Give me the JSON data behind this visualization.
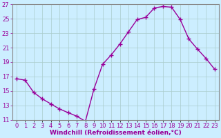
{
  "x": [
    0,
    1,
    2,
    3,
    4,
    5,
    6,
    7,
    8,
    9,
    10,
    11,
    12,
    13,
    14,
    15,
    16,
    17,
    18,
    19,
    20,
    21,
    22,
    23
  ],
  "y": [
    16.7,
    16.5,
    14.8,
    13.9,
    13.2,
    12.5,
    12.0,
    11.5,
    10.8,
    15.3,
    18.7,
    20.0,
    21.5,
    23.2,
    24.9,
    25.2,
    26.5,
    26.7,
    26.6,
    24.9,
    22.2,
    20.8,
    19.5,
    18.0
  ],
  "line_color": "#990099",
  "marker": "+",
  "marker_size": 4,
  "linewidth": 1.0,
  "bg_color": "#cceeff",
  "grid_color": "#aacccc",
  "xlabel": "Windchill (Refroidissement éolien,°C)",
  "xlim": [
    -0.5,
    23.5
  ],
  "ylim": [
    11,
    27
  ],
  "yticks": [
    11,
    13,
    15,
    17,
    19,
    21,
    23,
    25,
    27
  ],
  "xtick_labels": [
    "0",
    "1",
    "2",
    "3",
    "4",
    "5",
    "6",
    "7",
    "8",
    "9",
    "10",
    "11",
    "12",
    "13",
    "14",
    "15",
    "16",
    "17",
    "18",
    "19",
    "20",
    "21",
    "22",
    "23"
  ],
  "xlabel_fontsize": 6.5,
  "tick_fontsize": 6,
  "xlabel_color": "#990099"
}
